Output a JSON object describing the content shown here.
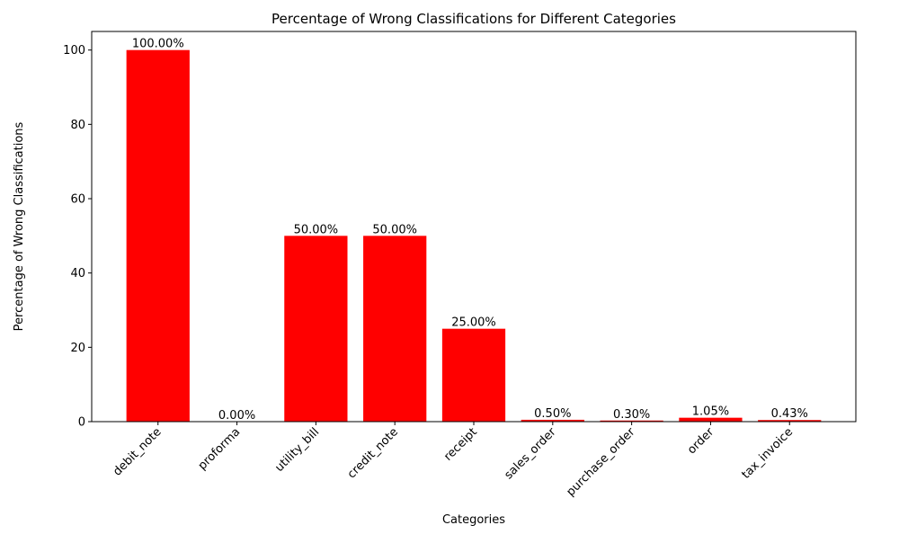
{
  "chart_data": {
    "type": "bar",
    "title": "Percentage of Wrong Classifications for Different Categories",
    "xlabel": "Categories",
    "ylabel": "Percentage of Wrong Classifications",
    "categories": [
      "debit_note",
      "proforma",
      "utility_bill",
      "credit_note",
      "receipt",
      "sales_order",
      "purchase_order",
      "order",
      "tax_invoice"
    ],
    "values": [
      100.0,
      0.0,
      50.0,
      50.0,
      25.0,
      0.5,
      0.3,
      1.05,
      0.43
    ],
    "data_labels": [
      "100.00%",
      "0.00%",
      "50.00%",
      "50.00%",
      "25.00%",
      "0.50%",
      "0.30%",
      "1.05%",
      "0.43%"
    ],
    "yticks": [
      0,
      20,
      40,
      60,
      80,
      100
    ],
    "ylim": [
      0,
      105
    ],
    "bar_color": "#ff0000",
    "grid": false,
    "legend": false,
    "xtick_rotation": 45
  }
}
